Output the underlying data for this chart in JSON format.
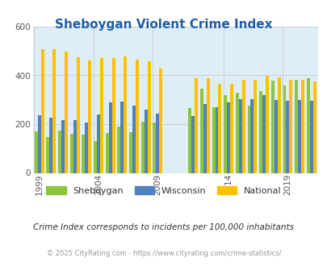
{
  "title": "Sheboygan Violent Crime Index",
  "subtitle": "Crime Index corresponds to incidents per 100,000 inhabitants",
  "footer": "© 2025 CityRating.com - https://www.cityrating.com/crime-statistics/",
  "years": [
    1999,
    2000,
    2001,
    2002,
    2003,
    2004,
    2005,
    2006,
    2007,
    2008,
    2009,
    2011,
    2012,
    2013,
    2014,
    2015,
    2016,
    2017,
    2018,
    2019,
    2020,
    2021
  ],
  "sheboygan": [
    170,
    148,
    175,
    160,
    158,
    132,
    165,
    190,
    168,
    210,
    205,
    265,
    345,
    270,
    320,
    330,
    275,
    335,
    378,
    358,
    383,
    388
  ],
  "wisconsin": [
    235,
    228,
    215,
    218,
    205,
    240,
    288,
    292,
    276,
    258,
    242,
    233,
    283,
    268,
    290,
    303,
    304,
    318,
    300,
    296,
    300,
    296
  ],
  "national": [
    508,
    508,
    498,
    473,
    461,
    471,
    471,
    478,
    466,
    458,
    428,
    387,
    387,
    366,
    366,
    381,
    381,
    398,
    393,
    381,
    381,
    376
  ],
  "sheboygan_color": "#8cc63f",
  "wisconsin_color": "#4f81bd",
  "national_color": "#ffc000",
  "bg_color": "#deeef6",
  "title_color": "#1f5fa6",
  "subtitle_color": "#333333",
  "footer_color": "#999999",
  "ylim": [
    0,
    600
  ],
  "yticks": [
    0,
    200,
    400,
    600
  ],
  "xlabel_ticks": [
    1999,
    2004,
    2009,
    2014,
    2019
  ],
  "grid_color": "#cccccc"
}
